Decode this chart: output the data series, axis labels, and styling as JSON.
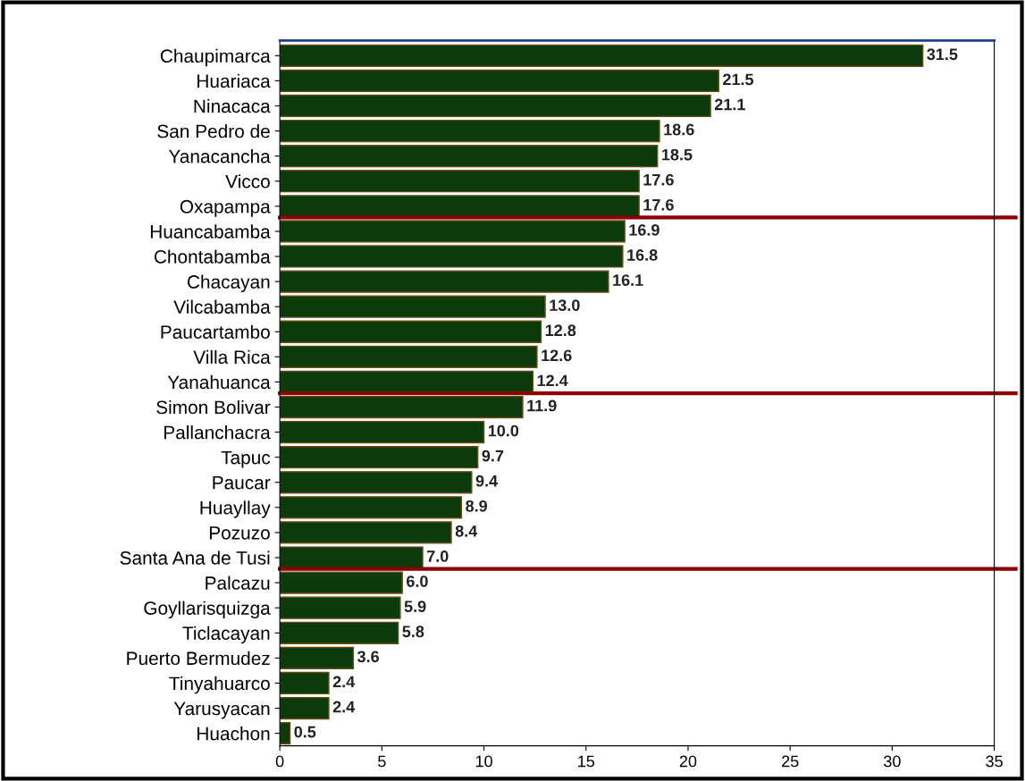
{
  "chart_data": {
    "type": "bar",
    "orientation": "horizontal",
    "categories": [
      "Chaupimarca",
      "Huariaca",
      "Ninacaca",
      "San Pedro de",
      "Yanacancha",
      "Vicco",
      "Oxapampa",
      "Huancabamba",
      "Chontabamba",
      "Chacayan",
      "Vilcabamba",
      "Paucartambo",
      "Villa Rica",
      "Yanahuanca",
      "Simon Bolivar",
      "Pallanchacra",
      "Tapuc",
      "Paucar",
      "Huayllay",
      "Pozuzo",
      "Santa Ana de Tusi",
      "Palcazu",
      "Goyllarisquizga",
      "Ticlacayan",
      "Puerto Bermudez",
      "Tinyahuarco",
      "Yarusyacan",
      "Huachon"
    ],
    "values": [
      31.5,
      21.5,
      21.1,
      18.6,
      18.5,
      17.6,
      17.6,
      16.9,
      16.8,
      16.1,
      13.0,
      12.8,
      12.6,
      12.4,
      11.9,
      10.0,
      9.7,
      9.4,
      8.9,
      8.4,
      7.0,
      6.0,
      5.9,
      5.8,
      3.6,
      2.4,
      2.4,
      0.5
    ],
    "value_labels": [
      "31.5",
      "21.5",
      "21.1",
      "18.6",
      "18.5",
      "17.6",
      "17.6",
      "16.9",
      "16.8",
      "16.1",
      "13.0",
      "12.8",
      "12.6",
      "12.4",
      "11.9",
      "10.0",
      "9.7",
      "9.4",
      "8.9",
      "8.4",
      "7.0",
      "6.0",
      "5.9",
      "5.8",
      "3.6",
      "2.4",
      "2.4",
      "0.5"
    ],
    "color": "#0b3b0b",
    "xlim": [
      0,
      35
    ],
    "xticks": [
      0,
      5,
      10,
      15,
      20,
      25,
      30,
      35
    ],
    "ref_lines": [
      {
        "axis": "y",
        "value": "Oxapampa",
        "color": "#8b0000"
      },
      {
        "axis": "y",
        "value": "Yanahuanca",
        "color": "#8b0000"
      },
      {
        "axis": "y",
        "value": "Santa Ana de Tusi",
        "color": "#8b0000"
      }
    ],
    "grid": false,
    "legend": false
  }
}
